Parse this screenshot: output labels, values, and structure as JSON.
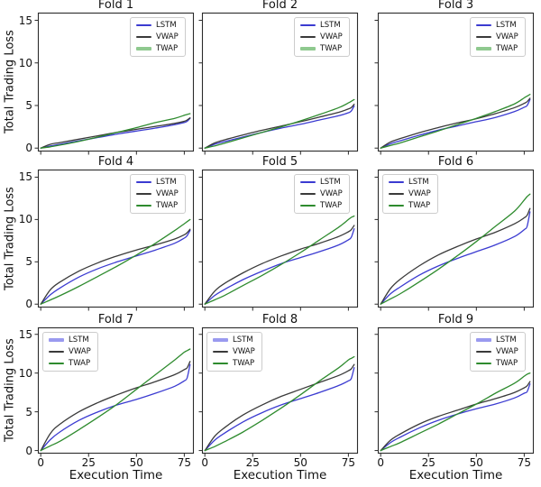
{
  "figure": {
    "ylabel": "Total Trading Loss",
    "xlabel": "Execution Time",
    "background": "#ffffff",
    "spine_color": "#2b2b2b"
  },
  "axes": {
    "yticks": [
      "0",
      "5",
      "10",
      "15"
    ],
    "ytick_values": [
      0,
      5,
      10,
      15
    ],
    "xticks": [
      "0",
      "25",
      "50",
      "75"
    ],
    "xtick_values": [
      0,
      25,
      50,
      75
    ],
    "xlim": [
      -1.5,
      80
    ],
    "ylim": [
      -0.4,
      15.9
    ],
    "grid": false
  },
  "series_style": [
    {
      "name": "LSTM",
      "color": "#3b3bd1",
      "highlight_color": "#9a9aef",
      "line_width": 1.3
    },
    {
      "name": "VWAP",
      "color": "#3a3a3a",
      "highlight_color": "#9a9a9a",
      "line_width": 1.3
    },
    {
      "name": "TWAP",
      "color": "#2e8b2e",
      "highlight_color": "#8fc98f",
      "line_width": 1.3
    }
  ],
  "chart_data": [
    {
      "type": "line",
      "title": "Fold 1",
      "legend_position": "upper-right",
      "legend_highlight": "TWAP",
      "x": [
        0,
        5,
        10,
        20,
        30,
        40,
        50,
        60,
        70,
        75,
        76.5,
        78
      ],
      "series": [
        {
          "name": "LSTM",
          "values": [
            0,
            0.25,
            0.45,
            0.85,
            1.25,
            1.65,
            2.0,
            2.35,
            2.75,
            3.0,
            3.15,
            3.5
          ]
        },
        {
          "name": "VWAP",
          "values": [
            0,
            0.45,
            0.65,
            1.05,
            1.45,
            1.85,
            2.2,
            2.55,
            2.9,
            3.15,
            3.3,
            3.55
          ]
        },
        {
          "name": "TWAP",
          "values": [
            0,
            0.15,
            0.35,
            0.8,
            1.3,
            1.85,
            2.4,
            3.0,
            3.5,
            3.85,
            3.95,
            4.05
          ]
        }
      ]
    },
    {
      "type": "line",
      "title": "Fold 2",
      "legend_position": "upper-right",
      "legend_highlight": "TWAP",
      "x": [
        0,
        5,
        10,
        20,
        30,
        40,
        50,
        60,
        70,
        75,
        76.5,
        78
      ],
      "series": [
        {
          "name": "LSTM",
          "values": [
            0,
            0.45,
            0.75,
            1.3,
            1.85,
            2.35,
            2.8,
            3.3,
            3.8,
            4.15,
            4.35,
            4.95
          ]
        },
        {
          "name": "VWAP",
          "values": [
            0,
            0.6,
            0.95,
            1.55,
            2.1,
            2.6,
            3.1,
            3.65,
            4.2,
            4.6,
            4.75,
            5.15
          ]
        },
        {
          "name": "TWAP",
          "values": [
            0,
            0.25,
            0.55,
            1.2,
            1.85,
            2.5,
            3.2,
            3.95,
            4.75,
            5.3,
            5.5,
            5.7
          ]
        }
      ]
    },
    {
      "type": "line",
      "title": "Fold 3",
      "legend_position": "upper-right",
      "legend_highlight": "TWAP",
      "x": [
        0,
        5,
        10,
        20,
        30,
        40,
        50,
        60,
        70,
        75,
        76.5,
        78
      ],
      "series": [
        {
          "name": "LSTM",
          "values": [
            0,
            0.5,
            0.85,
            1.5,
            2.1,
            2.6,
            3.1,
            3.6,
            4.3,
            4.8,
            5.0,
            5.7
          ]
        },
        {
          "name": "VWAP",
          "values": [
            0,
            0.7,
            1.1,
            1.8,
            2.4,
            2.95,
            3.45,
            4.05,
            4.75,
            5.25,
            5.45,
            5.85
          ]
        },
        {
          "name": "TWAP",
          "values": [
            0,
            0.3,
            0.6,
            1.3,
            2.0,
            2.75,
            3.5,
            4.3,
            5.2,
            5.9,
            6.1,
            6.3
          ]
        }
      ]
    },
    {
      "type": "line",
      "title": "Fold 4",
      "legend_position": "upper-right",
      "legend_highlight": null,
      "x": [
        0,
        5,
        10,
        20,
        30,
        40,
        50,
        60,
        70,
        75,
        76.5,
        78
      ],
      "series": [
        {
          "name": "LSTM",
          "values": [
            0,
            1.1,
            1.9,
            3.2,
            4.2,
            5.0,
            5.7,
            6.4,
            7.2,
            7.8,
            8.1,
            8.7
          ]
        },
        {
          "name": "VWAP",
          "values": [
            0,
            1.7,
            2.6,
            3.9,
            4.9,
            5.7,
            6.4,
            7.0,
            7.7,
            8.2,
            8.45,
            8.85
          ]
        },
        {
          "name": "TWAP",
          "values": [
            0,
            0.5,
            1.0,
            2.1,
            3.3,
            4.5,
            5.8,
            7.2,
            8.7,
            9.5,
            9.75,
            10.0
          ]
        }
      ]
    },
    {
      "type": "line",
      "title": "Fold 5",
      "legend_position": "upper-right",
      "legend_highlight": null,
      "x": [
        0,
        5,
        10,
        20,
        30,
        40,
        50,
        60,
        70,
        75,
        76.5,
        78
      ],
      "series": [
        {
          "name": "LSTM",
          "values": [
            0,
            1.0,
            1.7,
            2.9,
            3.9,
            4.8,
            5.5,
            6.2,
            7.0,
            7.6,
            7.9,
            8.9
          ]
        },
        {
          "name": "VWAP",
          "values": [
            0,
            1.5,
            2.4,
            3.7,
            4.8,
            5.7,
            6.5,
            7.2,
            8.0,
            8.55,
            8.8,
            9.3
          ]
        },
        {
          "name": "TWAP",
          "values": [
            0,
            0.5,
            1.0,
            2.2,
            3.4,
            4.7,
            6.1,
            7.6,
            9.1,
            10.0,
            10.25,
            10.4
          ]
        }
      ]
    },
    {
      "type": "line",
      "title": "Fold 6",
      "legend_position": "upper-left",
      "legend_highlight": null,
      "x": [
        0,
        5,
        10,
        20,
        30,
        40,
        50,
        60,
        70,
        75,
        76.5,
        78
      ],
      "series": [
        {
          "name": "LSTM",
          "values": [
            0,
            1.2,
            2.0,
            3.4,
            4.5,
            5.4,
            6.2,
            7.0,
            8.0,
            8.8,
            9.2,
            10.9
          ]
        },
        {
          "name": "VWAP",
          "values": [
            0,
            1.8,
            2.9,
            4.5,
            5.8,
            6.8,
            7.7,
            8.5,
            9.5,
            10.2,
            10.5,
            11.3
          ]
        },
        {
          "name": "TWAP",
          "values": [
            0,
            0.6,
            1.2,
            2.6,
            4.1,
            5.7,
            7.4,
            9.2,
            11.0,
            12.3,
            12.7,
            13.0
          ]
        }
      ]
    },
    {
      "type": "line",
      "title": "Fold 7",
      "legend_position": "upper-left",
      "legend_highlight": "LSTM",
      "x": [
        0,
        5,
        10,
        20,
        30,
        40,
        50,
        60,
        70,
        75,
        76.5,
        78
      ],
      "series": [
        {
          "name": "LSTM",
          "values": [
            0,
            1.4,
            2.4,
            3.9,
            5.0,
            5.9,
            6.6,
            7.4,
            8.3,
            9.0,
            9.4,
            11.1
          ]
        },
        {
          "name": "VWAP",
          "values": [
            0,
            2.2,
            3.4,
            5.0,
            6.2,
            7.2,
            8.1,
            8.9,
            9.8,
            10.45,
            10.7,
            11.5
          ]
        },
        {
          "name": "TWAP",
          "values": [
            0,
            0.6,
            1.2,
            2.7,
            4.3,
            6.0,
            7.9,
            9.8,
            11.7,
            12.7,
            12.9,
            13.1
          ]
        }
      ]
    },
    {
      "type": "line",
      "title": "Fold 8",
      "legend_position": "upper-left",
      "legend_highlight": "LSTM",
      "x": [
        0,
        5,
        10,
        20,
        30,
        40,
        50,
        60,
        70,
        75,
        76.5,
        78
      ],
      "series": [
        {
          "name": "LSTM",
          "values": [
            0,
            1.3,
            2.2,
            3.7,
            4.9,
            5.9,
            6.7,
            7.5,
            8.4,
            9.0,
            9.3,
            10.7
          ]
        },
        {
          "name": "VWAP",
          "values": [
            0,
            1.8,
            2.9,
            4.6,
            5.9,
            7.0,
            7.9,
            8.8,
            9.7,
            10.3,
            10.55,
            11.1
          ]
        },
        {
          "name": "TWAP",
          "values": [
            0,
            0.5,
            1.1,
            2.4,
            3.9,
            5.5,
            7.2,
            9.0,
            10.7,
            11.7,
            11.9,
            12.1
          ]
        }
      ]
    },
    {
      "type": "line",
      "title": "Fold 9",
      "legend_position": "upper-right",
      "legend_highlight": "LSTM",
      "x": [
        0,
        5,
        10,
        20,
        30,
        40,
        50,
        60,
        70,
        75,
        76.5,
        78
      ],
      "series": [
        {
          "name": "LSTM",
          "values": [
            0,
            1.0,
            1.7,
            2.9,
            3.9,
            4.7,
            5.4,
            6.0,
            6.8,
            7.4,
            7.6,
            8.6
          ]
        },
        {
          "name": "VWAP",
          "values": [
            0,
            1.3,
            2.1,
            3.4,
            4.4,
            5.2,
            6.0,
            6.7,
            7.5,
            8.1,
            8.35,
            8.9
          ]
        },
        {
          "name": "TWAP",
          "values": [
            0,
            0.5,
            1.0,
            2.2,
            3.4,
            4.7,
            6.0,
            7.4,
            8.7,
            9.6,
            9.85,
            10.0
          ]
        }
      ]
    }
  ]
}
